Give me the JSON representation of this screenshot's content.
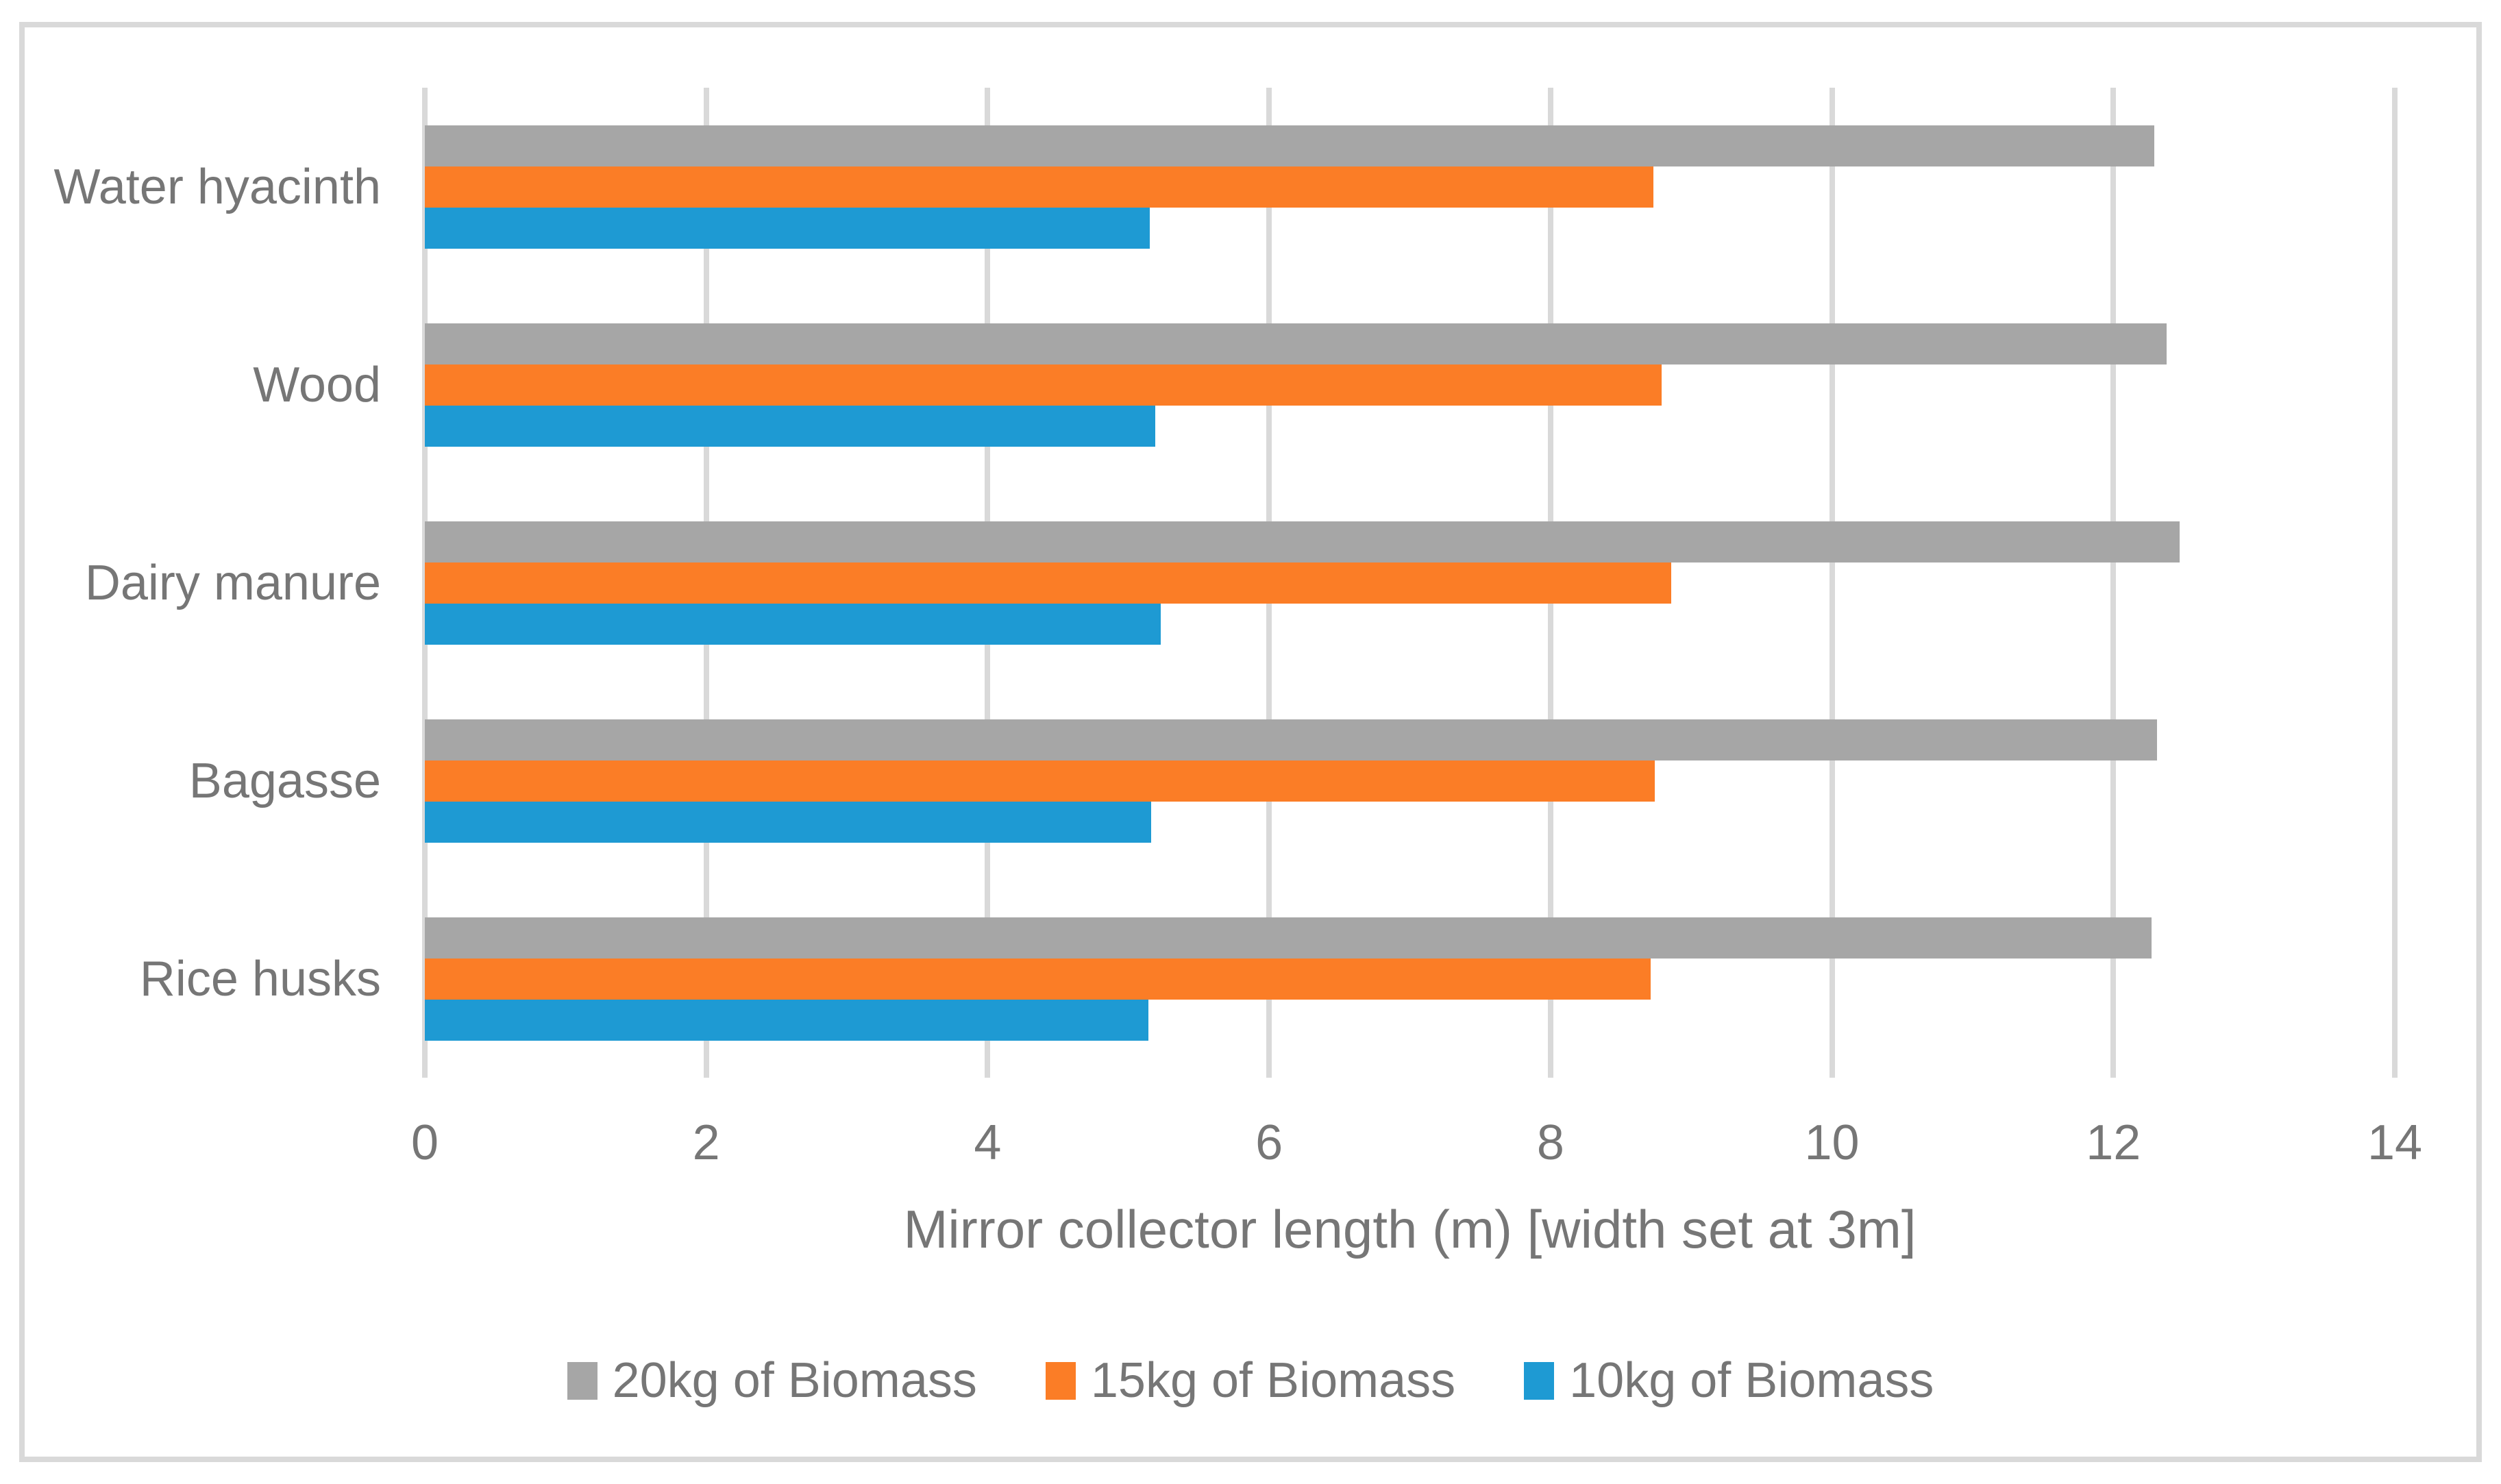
{
  "chart_data": {
    "type": "bar",
    "orientation": "horizontal",
    "title": "",
    "xlabel": "Mirror collector length (m) [width set at 3m]",
    "ylabel": "",
    "xlim": [
      0,
      14
    ],
    "xticks": [
      0,
      2,
      4,
      6,
      8,
      10,
      12,
      14
    ],
    "grid": true,
    "legend_position": "bottom",
    "categories": [
      "Water hyacinth",
      "Wood",
      "Dairy manure",
      "Bagasse",
      "Rice husks"
    ],
    "series": [
      {
        "name": "20kg of Biomass",
        "color": "#a6a6a6",
        "values": [
          12.29,
          12.38,
          12.47,
          12.31,
          12.27
        ]
      },
      {
        "name": "15kg of Biomass",
        "color": "#fb7d26",
        "values": [
          8.73,
          8.79,
          8.86,
          8.74,
          8.71
        ]
      },
      {
        "name": "10kg of Biomass",
        "color": "#1e9ad3",
        "values": [
          5.15,
          5.19,
          5.23,
          5.16,
          5.14
        ]
      }
    ]
  },
  "style": {
    "text_color": "#767676",
    "gridline_color": "#d9d9d9",
    "border_color": "#d9d9d9",
    "background": "#ffffff"
  }
}
